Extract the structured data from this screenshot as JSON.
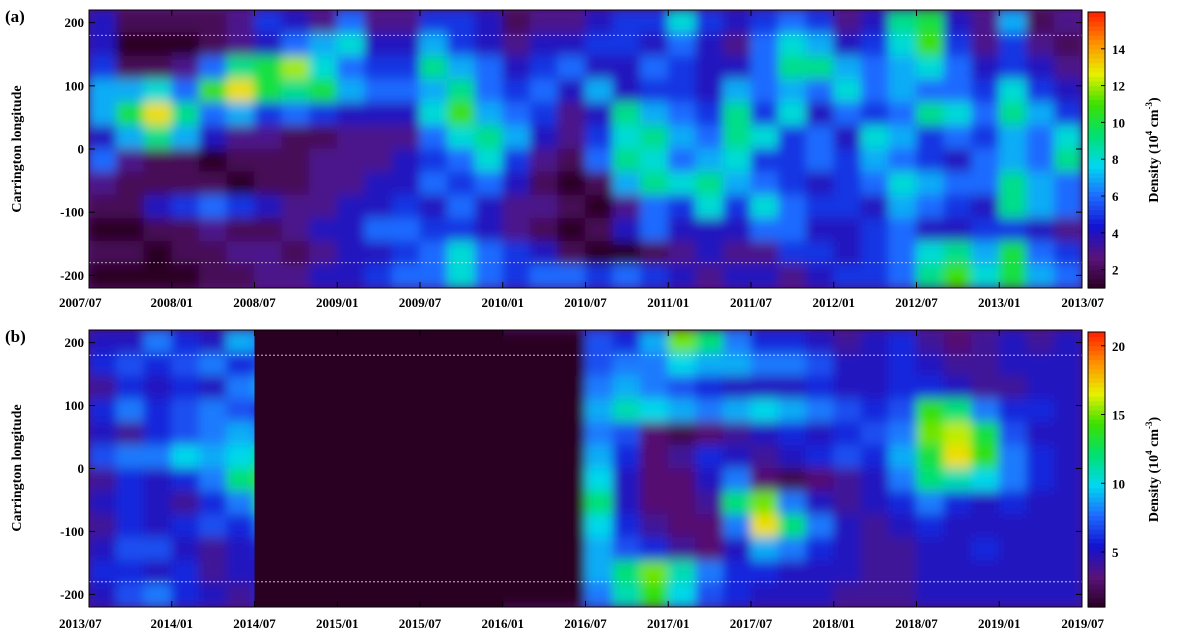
{
  "chart_data": [
    {
      "type": "heatmap",
      "panel_label": "(a)",
      "ylabel": "Carrington longitude",
      "ylim": [
        -220,
        220
      ],
      "y_ticks": [
        "200",
        "100",
        "0",
        "-100",
        "-200"
      ],
      "y_tick_values": [
        200,
        100,
        0,
        -100,
        -200
      ],
      "x_range": [
        "2007/07",
        "2013/07"
      ],
      "x_ticks": [
        "2007/07",
        "2008/01",
        "2008/07",
        "2009/01",
        "2009/07",
        "2010/01",
        "2010/07",
        "2011/01",
        "2011/07",
        "2012/01",
        "2012/07",
        "2013/01",
        "2013/07"
      ],
      "reference_lines": [
        180,
        -180
      ],
      "colorbar": {
        "label": "Density (10",
        "label_sup": "4",
        "label_unit": " cm",
        "label_unit_sup": "-3",
        "label_end": ")",
        "range": [
          1,
          16
        ],
        "ticks": [
          "14",
          "12",
          "10",
          "8",
          "6",
          "4",
          "2"
        ],
        "tick_values": [
          14,
          12,
          10,
          8,
          6,
          4,
          2
        ]
      },
      "colormap": [
        "#2a0022",
        "#5a127a",
        "#1212d0",
        "#1e6aff",
        "#00d8f0",
        "#00e070",
        "#3ce000",
        "#e8f000",
        "#ff9000",
        "#ff1e00"
      ],
      "density_grid": [
        [
          4,
          2,
          2,
          2,
          2,
          3,
          5,
          4,
          3,
          6,
          3,
          3,
          5,
          5,
          4,
          2,
          3,
          3,
          4,
          5,
          5,
          8,
          5,
          4,
          5,
          6,
          5,
          3,
          4,
          9,
          10,
          4,
          3,
          7,
          2,
          3
        ],
        [
          4,
          1,
          1,
          1,
          2,
          3,
          4,
          6,
          7,
          8,
          4,
          4,
          7,
          5,
          4,
          3,
          4,
          4,
          5,
          5,
          4,
          6,
          4,
          3,
          6,
          8,
          7,
          4,
          5,
          8,
          11,
          5,
          3,
          5,
          3,
          2
        ],
        [
          5,
          2,
          2,
          3,
          6,
          9,
          10,
          12,
          8,
          6,
          5,
          5,
          9,
          7,
          6,
          4,
          5,
          6,
          4,
          4,
          6,
          5,
          4,
          4,
          6,
          9,
          9,
          7,
          6,
          7,
          8,
          6,
          4,
          5,
          4,
          3
        ],
        [
          7,
          7,
          8,
          6,
          11,
          13,
          10,
          9,
          10,
          7,
          6,
          6,
          7,
          9,
          6,
          5,
          6,
          4,
          7,
          4,
          5,
          5,
          4,
          7,
          6,
          7,
          6,
          8,
          6,
          7,
          6,
          6,
          5,
          8,
          5,
          4
        ],
        [
          7,
          10,
          13,
          9,
          6,
          7,
          5,
          6,
          5,
          4,
          4,
          4,
          8,
          11,
          7,
          6,
          5,
          3,
          4,
          9,
          7,
          6,
          5,
          9,
          5,
          8,
          4,
          6,
          5,
          6,
          9,
          8,
          6,
          9,
          7,
          5
        ],
        [
          4,
          7,
          9,
          7,
          4,
          3,
          3,
          2,
          2,
          3,
          3,
          3,
          6,
          8,
          9,
          7,
          4,
          3,
          5,
          8,
          9,
          7,
          6,
          9,
          8,
          5,
          6,
          4,
          8,
          7,
          5,
          6,
          5,
          7,
          6,
          8
        ],
        [
          6,
          3,
          2,
          2,
          1,
          2,
          2,
          2,
          3,
          3,
          3,
          4,
          5,
          6,
          8,
          5,
          3,
          2,
          6,
          9,
          8,
          6,
          7,
          8,
          5,
          5,
          6,
          5,
          7,
          6,
          5,
          4,
          6,
          7,
          6,
          9
        ],
        [
          3,
          2,
          2,
          2,
          2,
          1,
          2,
          2,
          3,
          3,
          4,
          4,
          6,
          5,
          6,
          4,
          2,
          1,
          2,
          7,
          9,
          8,
          9,
          7,
          6,
          5,
          4,
          5,
          6,
          8,
          7,
          6,
          6,
          9,
          7,
          6
        ],
        [
          2,
          2,
          4,
          5,
          6,
          5,
          4,
          3,
          3,
          4,
          4,
          5,
          4,
          6,
          4,
          3,
          3,
          2,
          1,
          3,
          6,
          5,
          8,
          5,
          8,
          6,
          5,
          5,
          4,
          7,
          6,
          5,
          4,
          9,
          7,
          6
        ],
        [
          1,
          1,
          2,
          2,
          3,
          2,
          2,
          3,
          4,
          4,
          6,
          6,
          5,
          5,
          4,
          3,
          2,
          1,
          2,
          4,
          6,
          4,
          4,
          4,
          6,
          6,
          4,
          4,
          5,
          6,
          4,
          4,
          5,
          5,
          4,
          3
        ],
        [
          2,
          2,
          1,
          2,
          2,
          3,
          3,
          2,
          3,
          4,
          4,
          5,
          6,
          8,
          6,
          5,
          4,
          2,
          1,
          1,
          2,
          3,
          4,
          3,
          3,
          5,
          5,
          4,
          5,
          6,
          8,
          9,
          7,
          10,
          6,
          5
        ],
        [
          1,
          1,
          1,
          1,
          2,
          2,
          3,
          3,
          4,
          4,
          5,
          6,
          6,
          8,
          6,
          5,
          6,
          6,
          5,
          6,
          5,
          4,
          3,
          4,
          4,
          3,
          4,
          5,
          5,
          6,
          9,
          11,
          8,
          10,
          7,
          6
        ]
      ]
    },
    {
      "type": "heatmap",
      "panel_label": "(b)",
      "ylabel": "Carrington longitude",
      "ylim": [
        -220,
        220
      ],
      "y_ticks": [
        "200",
        "100",
        "0",
        "-100",
        "-200"
      ],
      "y_tick_values": [
        200,
        100,
        0,
        -100,
        -200
      ],
      "x_range": [
        "2013/07",
        "2019/07"
      ],
      "x_ticks": [
        "2013/07",
        "2014/01",
        "2014/07",
        "2015/01",
        "2015/07",
        "2016/01",
        "2016/07",
        "2017/01",
        "2017/07",
        "2018/01",
        "2018/07",
        "2019/01",
        "2019/07"
      ],
      "reference_lines": [
        180,
        -180
      ],
      "data_gap": [
        "2014/07",
        "2016/01"
      ],
      "colorbar": {
        "label": "Density (10",
        "label_sup": "4",
        "label_unit": " cm",
        "label_unit_sup": "-3",
        "label_end": ")",
        "range": [
          1,
          21
        ],
        "ticks": [
          "20",
          "15",
          "10",
          "5"
        ],
        "tick_values": [
          20,
          15,
          10,
          5
        ]
      },
      "colormap": [
        "#2a0022",
        "#5a127a",
        "#1212d0",
        "#1e6aff",
        "#00d8f0",
        "#00e070",
        "#3ce000",
        "#e8f000",
        "#ff9000",
        "#ff1e00"
      ],
      "density_grid": [
        [
          5,
          5,
          8,
          6,
          5,
          9,
          8,
          4,
          1,
          1,
          1,
          1,
          1,
          1,
          1,
          1,
          1,
          1,
          7,
          6,
          9,
          15,
          12,
          8,
          6,
          6,
          5,
          4,
          5,
          6,
          4,
          3,
          4,
          5,
          4,
          5
        ],
        [
          6,
          7,
          6,
          7,
          8,
          6,
          7,
          6,
          1,
          1,
          1,
          1,
          1,
          1,
          1,
          1,
          1,
          1,
          7,
          8,
          8,
          10,
          9,
          9,
          8,
          8,
          7,
          5,
          5,
          6,
          5,
          4,
          4,
          5,
          5,
          5
        ],
        [
          4,
          6,
          5,
          6,
          5,
          8,
          9,
          6,
          1,
          1,
          1,
          1,
          1,
          1,
          1,
          1,
          1,
          1,
          8,
          9,
          8,
          7,
          6,
          5,
          5,
          5,
          6,
          5,
          5,
          6,
          6,
          5,
          4,
          4,
          5,
          5
        ],
        [
          6,
          8,
          6,
          7,
          8,
          7,
          6,
          5,
          1,
          1,
          1,
          1,
          1,
          1,
          1,
          1,
          1,
          1,
          9,
          11,
          10,
          9,
          8,
          9,
          10,
          9,
          8,
          7,
          6,
          7,
          14,
          12,
          8,
          6,
          6,
          5
        ],
        [
          5,
          4,
          6,
          7,
          8,
          9,
          8,
          6,
          1,
          1,
          1,
          1,
          1,
          1,
          1,
          1,
          1,
          1,
          8,
          7,
          3,
          2,
          3,
          4,
          5,
          6,
          5,
          6,
          7,
          8,
          15,
          16,
          13,
          7,
          5,
          5
        ],
        [
          7,
          8,
          8,
          10,
          9,
          10,
          12,
          8,
          1,
          1,
          1,
          1,
          1,
          1,
          1,
          1,
          1,
          1,
          9,
          6,
          3,
          4,
          6,
          5,
          4,
          5,
          6,
          7,
          6,
          9,
          13,
          17,
          14,
          8,
          6,
          5
        ],
        [
          4,
          6,
          5,
          6,
          8,
          12,
          14,
          9,
          1,
          1,
          1,
          1,
          1,
          1,
          1,
          1,
          1,
          1,
          10,
          5,
          3,
          3,
          5,
          8,
          3,
          2,
          3,
          4,
          5,
          8,
          12,
          11,
          10,
          8,
          6,
          5
        ],
        [
          5,
          6,
          5,
          4,
          6,
          8,
          13,
          9,
          1,
          1,
          1,
          1,
          1,
          1,
          1,
          1,
          1,
          1,
          12,
          5,
          3,
          3,
          4,
          12,
          15,
          8,
          5,
          4,
          5,
          6,
          8,
          6,
          5,
          6,
          5,
          5
        ],
        [
          4,
          6,
          5,
          6,
          7,
          6,
          8,
          9,
          1,
          1,
          1,
          1,
          1,
          1,
          1,
          1,
          1,
          1,
          10,
          6,
          4,
          3,
          3,
          8,
          17,
          12,
          8,
          5,
          4,
          5,
          6,
          5,
          5,
          5,
          5,
          5
        ],
        [
          5,
          7,
          7,
          5,
          4,
          5,
          6,
          10,
          1,
          1,
          1,
          1,
          1,
          1,
          1,
          1,
          1,
          1,
          9,
          7,
          6,
          4,
          3,
          5,
          9,
          8,
          6,
          5,
          4,
          4,
          5,
          5,
          6,
          5,
          5,
          5
        ],
        [
          6,
          6,
          5,
          6,
          4,
          5,
          5,
          11,
          1,
          1,
          1,
          1,
          1,
          1,
          1,
          1,
          1,
          1,
          9,
          12,
          15,
          11,
          8,
          6,
          6,
          5,
          5,
          5,
          4,
          4,
          5,
          5,
          5,
          5,
          5,
          5
        ],
        [
          5,
          7,
          8,
          6,
          5,
          4,
          6,
          9,
          1,
          1,
          1,
          1,
          1,
          1,
          1,
          1,
          1,
          1,
          8,
          11,
          14,
          10,
          7,
          6,
          5,
          5,
          5,
          4,
          4,
          4,
          5,
          5,
          5,
          5,
          5,
          5
        ]
      ]
    }
  ]
}
